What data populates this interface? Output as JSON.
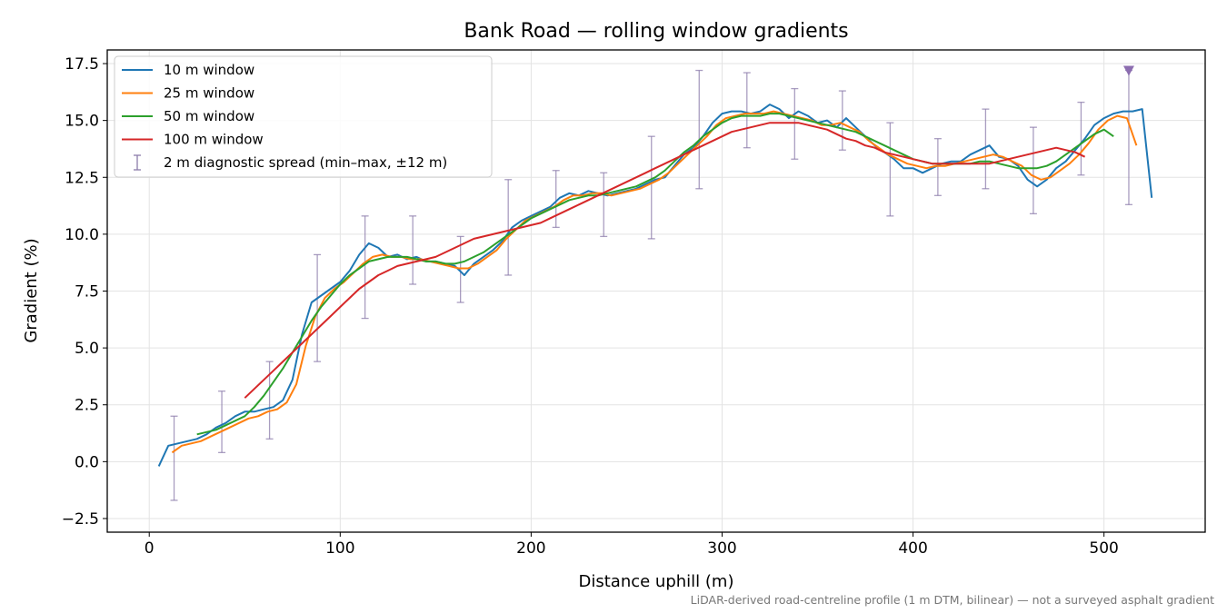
{
  "chart_data": {
    "type": "line",
    "title": "Bank Road — rolling window gradients",
    "xlabel": "Distance uphill (m)",
    "ylabel": "Gradient (%)",
    "xlim": [
      -22,
      553
    ],
    "ylim": [
      -3.1,
      18.1
    ],
    "xticks": [
      0,
      100,
      200,
      300,
      400,
      500
    ],
    "yticks": [
      -2.5,
      0.0,
      2.5,
      5.0,
      7.5,
      10.0,
      12.5,
      15.0,
      17.5
    ],
    "xtick_labels": [
      "0",
      "100",
      "200",
      "300",
      "400",
      "500"
    ],
    "ytick_labels": [
      "−2.5",
      "0.0",
      "2.5",
      "5.0",
      "7.5",
      "10.0",
      "12.5",
      "15.0",
      "17.5"
    ],
    "grid": true,
    "legend_position": "upper left",
    "footnote": "LiDAR-derived road-centreline profile (1 m DTM, bilinear) — not a surveyed asphalt gradient",
    "colors": {
      "10 m window": "#1f77b4",
      "25 m window": "#ff7f0e",
      "50 m window": "#2ca02c",
      "100 m window": "#d62728",
      "spread": "#8c7cab",
      "marker": "#8c6db0"
    },
    "series": [
      {
        "name": "10 m window",
        "x": [
          5,
          10,
          15,
          20,
          25,
          30,
          35,
          40,
          45,
          50,
          55,
          60,
          65,
          70,
          75,
          80,
          85,
          90,
          95,
          100,
          105,
          110,
          115,
          120,
          125,
          130,
          135,
          140,
          145,
          150,
          155,
          160,
          165,
          170,
          175,
          180,
          185,
          190,
          195,
          200,
          205,
          210,
          215,
          220,
          225,
          230,
          235,
          240,
          245,
          250,
          255,
          260,
          265,
          270,
          275,
          280,
          285,
          290,
          295,
          300,
          305,
          310,
          315,
          320,
          325,
          330,
          335,
          340,
          345,
          350,
          355,
          360,
          365,
          370,
          375,
          380,
          385,
          390,
          395,
          400,
          405,
          410,
          415,
          420,
          425,
          430,
          435,
          440,
          445,
          450,
          455,
          460,
          465,
          470,
          475,
          480,
          485,
          490,
          495,
          500,
          505,
          510,
          515,
          520,
          525
        ],
        "y": [
          -0.2,
          0.7,
          0.8,
          0.9,
          1.0,
          1.2,
          1.5,
          1.7,
          2.0,
          2.2,
          2.2,
          2.3,
          2.4,
          2.7,
          3.6,
          5.6,
          7.0,
          7.3,
          7.6,
          7.9,
          8.4,
          9.1,
          9.6,
          9.4,
          9.0,
          9.1,
          8.9,
          9.0,
          8.8,
          8.8,
          8.7,
          8.6,
          8.2,
          8.7,
          9.0,
          9.3,
          9.7,
          10.3,
          10.6,
          10.8,
          11.0,
          11.2,
          11.6,
          11.8,
          11.7,
          11.9,
          11.8,
          11.7,
          11.8,
          11.9,
          12.0,
          12.2,
          12.4,
          12.5,
          13.0,
          13.5,
          13.8,
          14.3,
          14.9,
          15.3,
          15.4,
          15.4,
          15.3,
          15.4,
          15.7,
          15.5,
          15.1,
          15.4,
          15.2,
          14.9,
          15.0,
          14.7,
          15.1,
          14.7,
          14.3,
          13.9,
          13.6,
          13.3,
          12.9,
          12.9,
          12.7,
          12.9,
          13.1,
          13.2,
          13.2,
          13.5,
          13.7,
          13.9,
          13.4,
          13.3,
          13.0,
          12.4,
          12.1,
          12.4,
          12.9,
          13.2,
          13.7,
          14.2,
          14.8,
          15.1,
          15.3,
          15.4,
          15.4,
          15.5,
          11.6
        ]
      },
      {
        "name": "25 m window",
        "x": [
          12,
          17,
          22,
          27,
          32,
          37,
          42,
          47,
          52,
          57,
          62,
          67,
          72,
          77,
          82,
          87,
          92,
          97,
          102,
          107,
          112,
          117,
          122,
          127,
          132,
          137,
          142,
          147,
          152,
          157,
          162,
          167,
          172,
          177,
          182,
          187,
          192,
          197,
          202,
          207,
          212,
          217,
          222,
          227,
          232,
          237,
          242,
          247,
          252,
          257,
          262,
          267,
          272,
          277,
          282,
          287,
          292,
          297,
          302,
          307,
          312,
          317,
          322,
          327,
          332,
          337,
          342,
          347,
          352,
          357,
          362,
          367,
          372,
          377,
          382,
          387,
          392,
          397,
          402,
          407,
          412,
          417,
          422,
          427,
          432,
          437,
          442,
          447,
          452,
          457,
          462,
          467,
          472,
          477,
          482,
          487,
          492,
          497,
          502,
          507,
          512,
          517
        ],
        "y": [
          0.4,
          0.7,
          0.8,
          0.9,
          1.1,
          1.3,
          1.5,
          1.7,
          1.9,
          2.0,
          2.2,
          2.3,
          2.6,
          3.4,
          5.1,
          6.4,
          7.2,
          7.6,
          7.9,
          8.3,
          8.7,
          9.0,
          9.1,
          9.0,
          9.0,
          8.9,
          8.9,
          8.8,
          8.7,
          8.6,
          8.5,
          8.5,
          8.7,
          9.0,
          9.3,
          9.8,
          10.2,
          10.6,
          10.8,
          11.0,
          11.2,
          11.5,
          11.7,
          11.7,
          11.8,
          11.8,
          11.7,
          11.8,
          11.9,
          12.0,
          12.2,
          12.4,
          12.7,
          13.1,
          13.5,
          13.9,
          14.3,
          14.8,
          15.1,
          15.2,
          15.3,
          15.3,
          15.3,
          15.4,
          15.3,
          15.2,
          15.1,
          15.0,
          14.8,
          14.8,
          14.9,
          14.7,
          14.5,
          14.1,
          13.8,
          13.5,
          13.3,
          13.1,
          13.0,
          12.9,
          13.0,
          13.0,
          13.1,
          13.2,
          13.3,
          13.4,
          13.5,
          13.4,
          13.2,
          13.0,
          12.6,
          12.4,
          12.5,
          12.8,
          13.1,
          13.5,
          14.0,
          14.6,
          15.0,
          15.2,
          15.1,
          13.9
        ]
      },
      {
        "name": "50 m window",
        "x": [
          25,
          30,
          35,
          40,
          45,
          50,
          55,
          60,
          65,
          70,
          75,
          80,
          85,
          90,
          95,
          100,
          105,
          110,
          115,
          120,
          125,
          130,
          135,
          140,
          145,
          150,
          155,
          160,
          165,
          170,
          175,
          180,
          185,
          190,
          195,
          200,
          205,
          210,
          215,
          220,
          225,
          230,
          235,
          240,
          245,
          250,
          255,
          260,
          265,
          270,
          275,
          280,
          285,
          290,
          295,
          300,
          305,
          310,
          315,
          320,
          325,
          330,
          335,
          340,
          345,
          350,
          355,
          360,
          365,
          370,
          375,
          380,
          385,
          390,
          395,
          400,
          405,
          410,
          415,
          420,
          425,
          430,
          435,
          440,
          445,
          450,
          455,
          460,
          465,
          470,
          475,
          480,
          485,
          490,
          495,
          500,
          505
        ],
        "y": [
          1.2,
          1.3,
          1.4,
          1.6,
          1.8,
          2.0,
          2.4,
          2.9,
          3.5,
          4.1,
          4.8,
          5.5,
          6.2,
          6.8,
          7.3,
          7.8,
          8.2,
          8.5,
          8.8,
          8.9,
          9.0,
          9.0,
          9.0,
          8.9,
          8.8,
          8.8,
          8.7,
          8.7,
          8.8,
          9.0,
          9.2,
          9.5,
          9.8,
          10.1,
          10.4,
          10.7,
          10.9,
          11.1,
          11.3,
          11.5,
          11.6,
          11.7,
          11.7,
          11.8,
          11.9,
          12.0,
          12.1,
          12.3,
          12.5,
          12.8,
          13.2,
          13.6,
          13.9,
          14.3,
          14.6,
          14.9,
          15.1,
          15.2,
          15.2,
          15.2,
          15.3,
          15.3,
          15.2,
          15.1,
          15.0,
          14.9,
          14.8,
          14.7,
          14.6,
          14.5,
          14.3,
          14.1,
          13.9,
          13.7,
          13.5,
          13.3,
          13.2,
          13.1,
          13.1,
          13.1,
          13.1,
          13.1,
          13.2,
          13.2,
          13.1,
          13.0,
          12.9,
          12.9,
          12.9,
          13.0,
          13.2,
          13.5,
          13.8,
          14.1,
          14.4,
          14.6,
          14.3
        ]
      },
      {
        "name": "100 m window",
        "x": [
          50,
          55,
          60,
          65,
          70,
          75,
          80,
          85,
          90,
          95,
          100,
          105,
          110,
          115,
          120,
          125,
          130,
          135,
          140,
          145,
          150,
          155,
          160,
          165,
          170,
          175,
          180,
          185,
          190,
          195,
          200,
          205,
          210,
          215,
          220,
          225,
          230,
          235,
          240,
          245,
          250,
          255,
          260,
          265,
          270,
          275,
          280,
          285,
          290,
          295,
          300,
          305,
          310,
          315,
          320,
          325,
          330,
          335,
          340,
          345,
          350,
          355,
          360,
          365,
          370,
          375,
          380,
          385,
          390,
          395,
          400,
          405,
          410,
          415,
          420,
          425,
          430,
          435,
          440,
          445,
          450,
          455,
          460,
          465,
          470,
          475,
          480,
          485,
          490
        ],
        "y": [
          2.8,
          3.2,
          3.6,
          4.0,
          4.4,
          4.8,
          5.2,
          5.6,
          6.0,
          6.4,
          6.8,
          7.2,
          7.6,
          7.9,
          8.2,
          8.4,
          8.6,
          8.7,
          8.8,
          8.9,
          9.0,
          9.2,
          9.4,
          9.6,
          9.8,
          9.9,
          10.0,
          10.1,
          10.2,
          10.3,
          10.4,
          10.5,
          10.7,
          10.9,
          11.1,
          11.3,
          11.5,
          11.7,
          11.9,
          12.1,
          12.3,
          12.5,
          12.7,
          12.9,
          13.1,
          13.3,
          13.5,
          13.7,
          13.9,
          14.1,
          14.3,
          14.5,
          14.6,
          14.7,
          14.8,
          14.9,
          14.9,
          14.9,
          14.9,
          14.8,
          14.7,
          14.6,
          14.4,
          14.2,
          14.1,
          13.9,
          13.8,
          13.6,
          13.5,
          13.4,
          13.3,
          13.2,
          13.1,
          13.1,
          13.1,
          13.1,
          13.1,
          13.1,
          13.1,
          13.2,
          13.3,
          13.4,
          13.5,
          13.6,
          13.7,
          13.8,
          13.7,
          13.6,
          13.4
        ]
      }
    ],
    "errorbars": {
      "name": "2 m diagnostic spread (min–max, ±12 m)",
      "x": [
        13,
        38,
        63,
        88,
        113,
        138,
        163,
        188,
        213,
        238,
        263,
        288,
        313,
        338,
        363,
        388,
        413,
        438,
        463,
        488,
        513
      ],
      "ymin": [
        -1.7,
        0.4,
        1.0,
        4.4,
        6.3,
        7.8,
        7.0,
        8.2,
        10.3,
        9.9,
        9.8,
        12.0,
        13.8,
        13.3,
        13.7,
        10.8,
        11.7,
        12.0,
        10.9,
        12.6,
        11.3
      ],
      "ymax": [
        2.0,
        3.1,
        4.4,
        9.1,
        10.8,
        10.8,
        9.9,
        12.4,
        12.8,
        12.7,
        14.3,
        17.2,
        17.1,
        16.4,
        16.3,
        14.9,
        14.2,
        15.5,
        14.7,
        15.8,
        17.2
      ]
    },
    "marker": {
      "x": 513,
      "y": 17.2,
      "shape": "triangle-down"
    }
  }
}
